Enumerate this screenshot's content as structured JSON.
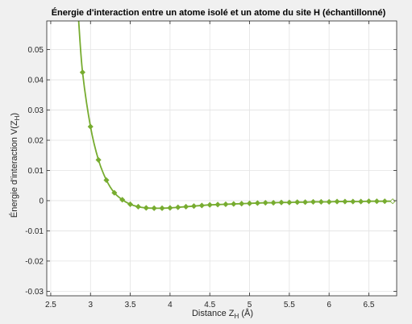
{
  "chart_data": {
    "type": "line",
    "title": "Énergie d'interaction entre un atome isolé et un atome du site H (échantillonné)",
    "xlabel": {
      "main": "Distance Z",
      "sub": "H",
      "suffix": " (Å)"
    },
    "ylabel": {
      "main": "Énergie d'interaction V(Z",
      "sub": "H",
      "suffix": ")"
    },
    "xlim": [
      2.45,
      6.85
    ],
    "ylim": [
      -0.0315,
      0.0595
    ],
    "xticks": [
      2.5,
      3,
      3.5,
      4,
      4.5,
      5,
      5.5,
      6,
      6.5
    ],
    "xtick_labels": [
      "2.5",
      "3",
      "3.5",
      "4",
      "4.5",
      "5",
      "5.5",
      "6",
      "6.5"
    ],
    "yticks": [
      -0.03,
      -0.02,
      -0.01,
      0,
      0.01,
      0.02,
      0.03,
      0.04,
      0.05
    ],
    "ytick_labels": [
      "-0.03",
      "-0.02",
      "-0.01",
      "0",
      "0.01",
      "0.02",
      "0.03",
      "0.04",
      "0.05"
    ],
    "grid": true,
    "legend": "none",
    "series": [
      {
        "color": "#77ac30",
        "marker": "diamond",
        "x": [
          2.9,
          3.0,
          3.1,
          3.2,
          3.3,
          3.4,
          3.5,
          3.6,
          3.7,
          3.8,
          3.9,
          4.0,
          4.1,
          4.2,
          4.3,
          4.4,
          4.5,
          4.6,
          4.7,
          4.8,
          4.9,
          5.0,
          5.1,
          5.2,
          5.3,
          5.4,
          5.5,
          5.6,
          5.7,
          5.8,
          5.9,
          6.0,
          6.1,
          6.2,
          6.3,
          6.4,
          6.5,
          6.6,
          6.7,
          6.8
        ],
        "y": [
          0.0425,
          0.0245,
          0.0135,
          0.0068,
          0.0026,
          0.0003,
          -0.0012,
          -0.002,
          -0.0024,
          -0.0025,
          -0.0025,
          -0.0024,
          -0.0022,
          -0.002,
          -0.0018,
          -0.0016,
          -0.0014,
          -0.0013,
          -0.0012,
          -0.0011,
          -0.001,
          -0.0009,
          -0.0008,
          -0.0007,
          -0.0007,
          -0.0006,
          -0.0006,
          -0.0005,
          -0.0005,
          -0.0004,
          -0.0004,
          -0.0004,
          -0.0003,
          -0.0003,
          -0.0003,
          -0.0003,
          -0.0002,
          -0.0002,
          -0.0002,
          -0.0002
        ],
        "curve_extension": {
          "x": [
            2.85
          ],
          "y": [
            0.06
          ]
        }
      }
    ]
  }
}
